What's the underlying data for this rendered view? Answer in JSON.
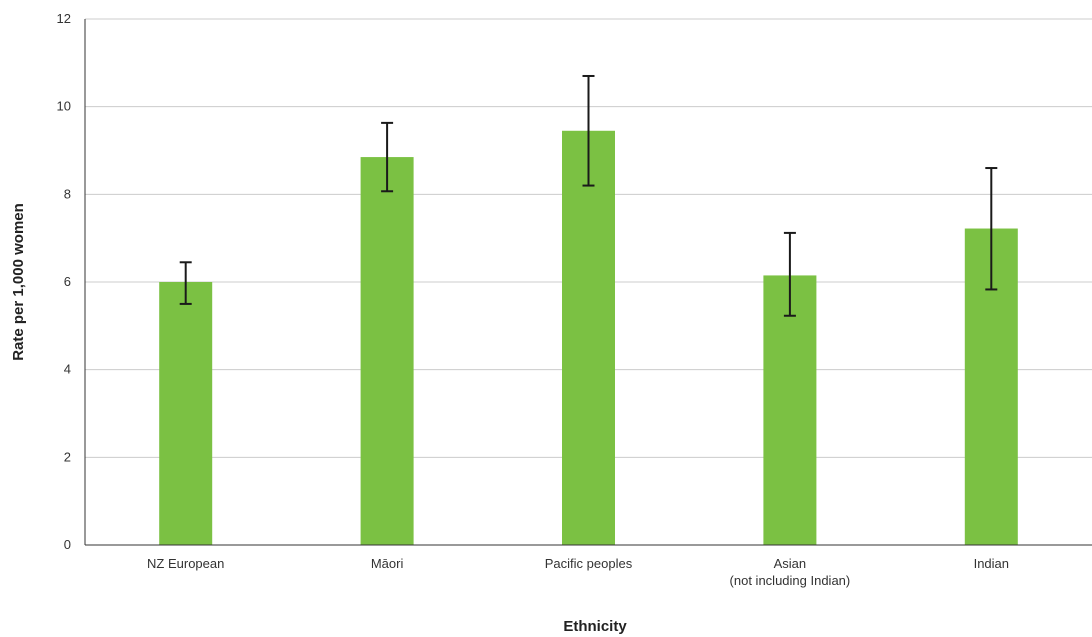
{
  "chart_data": {
    "type": "bar",
    "categories": [
      [
        "NZ European"
      ],
      [
        "Māori"
      ],
      [
        "Pacific peoples"
      ],
      [
        "Asian",
        "(not including Indian)"
      ],
      [
        "Indian"
      ]
    ],
    "values": [
      6.0,
      8.85,
      9.45,
      6.15,
      7.22
    ],
    "error_low": [
      5.5,
      8.07,
      8.2,
      5.23,
      5.83
    ],
    "error_high": [
      6.45,
      9.63,
      10.7,
      7.12,
      8.6
    ],
    "xlabel": "Ethnicity",
    "ylabel": "Rate per 1,000 women",
    "ylim": [
      0,
      12
    ],
    "yticks": [
      0,
      2,
      4,
      6,
      8,
      10,
      12
    ],
    "grid": true,
    "bar_color": "#7bc143",
    "error_color": "#1a1a1a",
    "grid_color": "#cccccc"
  }
}
